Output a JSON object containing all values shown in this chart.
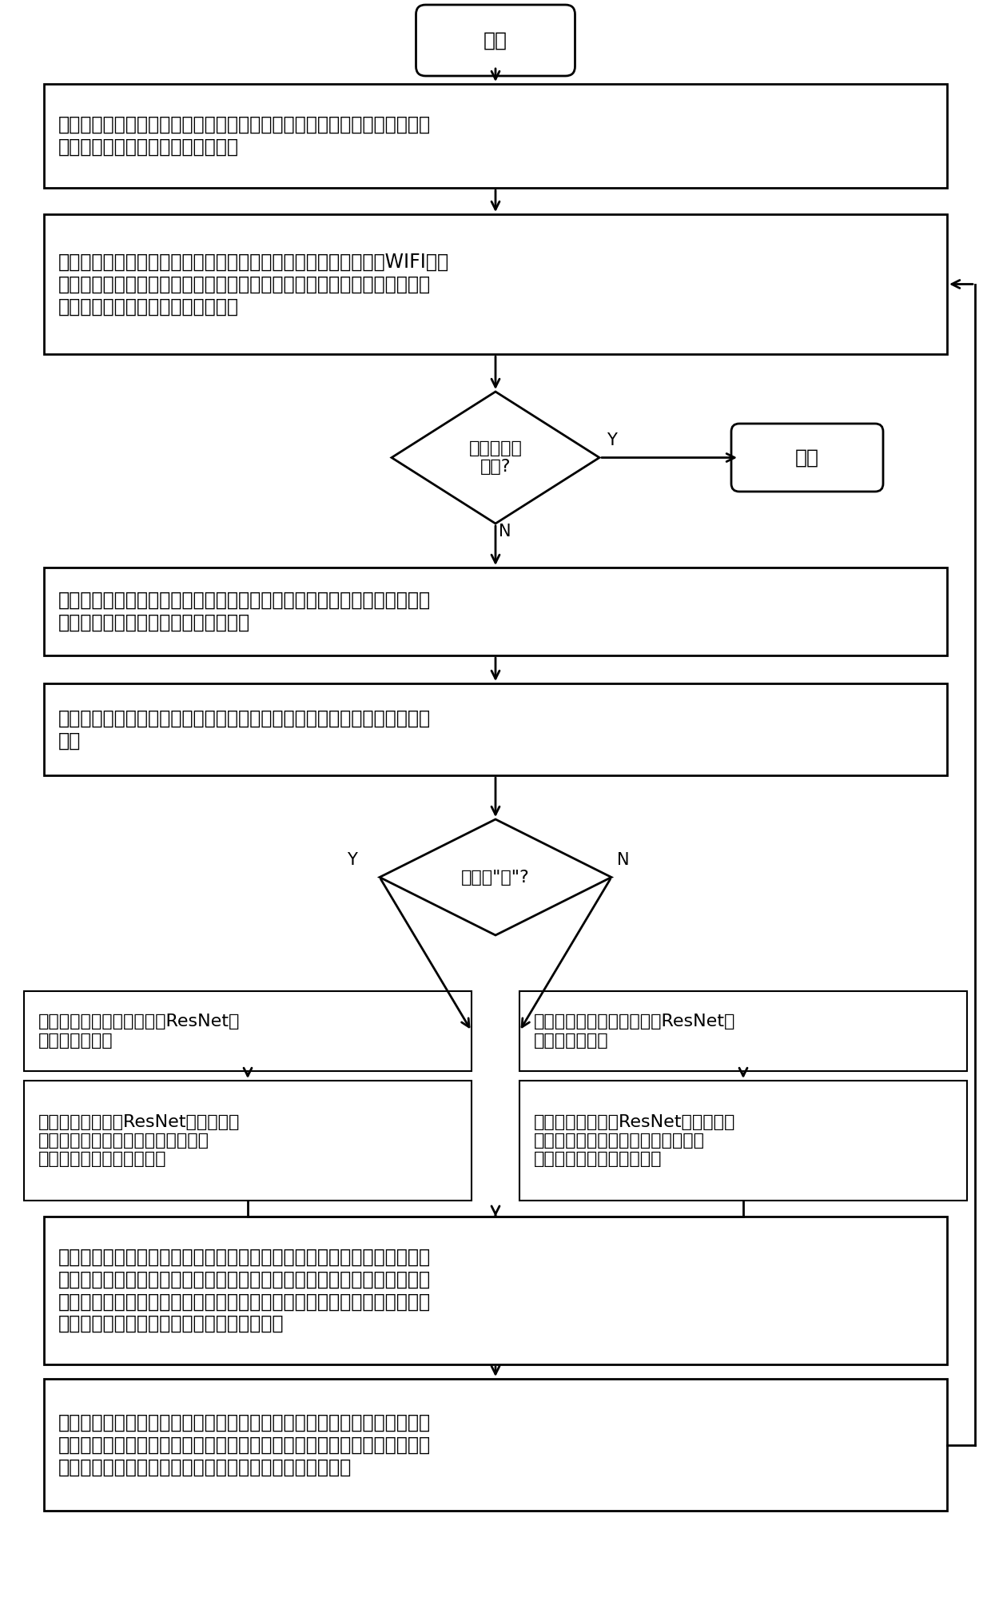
{
  "bg_color": "#ffffff",
  "line_color": "#000000",
  "text_color": "#000000",
  "start_text": "开始",
  "end_text": "结束",
  "step1_text": "第一步，搭建多机器人环境，它由地面和空中机器人节点，云端服务器节点\n构成。它们之间通过网络设备互连。",
  "step2_text": "第二步，云端服务器节点、地面机器人节点、空中机器人节点通过WIFI建立\n连接信道以传播图片信息和速度命令信息；地面机器人节点和空中机器人节\n点判断是否接收到用户的停止命令。",
  "d1_text": "接收到停止\n命令?",
  "d1_Y": "Y",
  "d1_N": "N",
  "env_text": "地面机器人节点和空中机器人节点感知环境，并通过连接信道将视图发送给\n云端服务器节点的感知数据接收模块。",
  "step3_text": "第三步，云端服务器节点上的感知数据接收模块通过连接信道接收图片和标\n志。",
  "d2_text": "标志是\"地\"?",
  "d2_Y": "Y",
  "d2_N": "N",
  "left1_text": "将低层视图发送给地面基于ResNet的\n图像分类模块。",
  "right1_text": "将高层视图发送给空中基于ResNet的\n图像分类模块。",
  "left2_text": "第四步，地面基于ResNet的图像分类\n模块进行图像识别分类，将初步识别\n结果发送给协同决策模块。",
  "right2_text": "第五步，空中基于ResNet的图像分类\n模块进行图像识别分类，将初步识别\n结果发送给协同决策模块。",
  "step6_text": "第六步，协同识别决策模块根据初步识别结果判断图片识别是否正确。如果\n正确，将结果发送给速度转换模块，执行第七步；否则将基于低层视图的分\n类标签概率向量和分类标签发送给决策融合模块进行决策融合，将融合的分\n类标签概率率和信号标志传给速度转换模块。",
  "step7_text": "第七步，速度转换模块接收信号标志和分类标签概率向量，计算出机器人行\n走的线速度和角速度，并将其发送给地面机器人和空中机器人的速度命令接\n收模块，使得地面机器人和空中机器人可以协同沿路前进。"
}
